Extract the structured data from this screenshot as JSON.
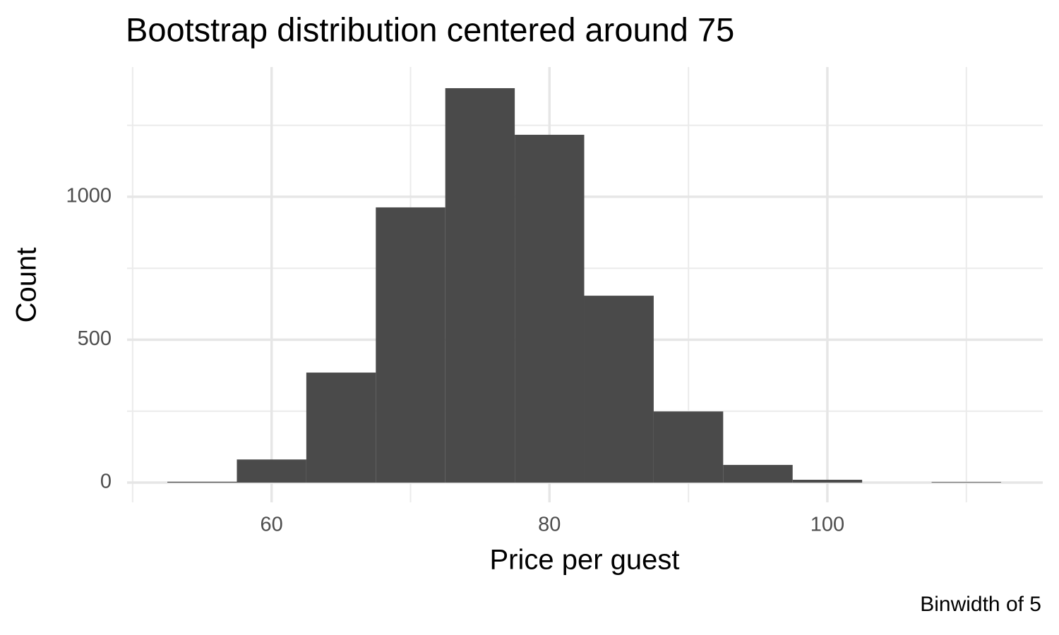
{
  "chart_data": {
    "type": "histogram",
    "title": "Bootstrap distribution centered around 75",
    "xlabel": "Price per guest",
    "ylabel": "Count",
    "caption": "Binwidth of 5",
    "bins": [
      52.5,
      57.5,
      62.5,
      67.5,
      72.5,
      77.5,
      82.5,
      87.5,
      92.5,
      97.5,
      102.5,
      107.5,
      112.5
    ],
    "counts": [
      3,
      81,
      385,
      963,
      1380,
      1217,
      654,
      249,
      62,
      10,
      0,
      2
    ],
    "color": "#4a4a4a",
    "xlim": [
      49.6,
      115.5
    ],
    "xticks": [
      60,
      80,
      100
    ],
    "xminor": [
      50,
      70,
      90,
      110
    ],
    "ylim": [
      -69,
      1454
    ],
    "yticks": [
      0,
      500,
      1000
    ],
    "yminor": [
      250,
      750,
      1250
    ],
    "grid": true
  }
}
